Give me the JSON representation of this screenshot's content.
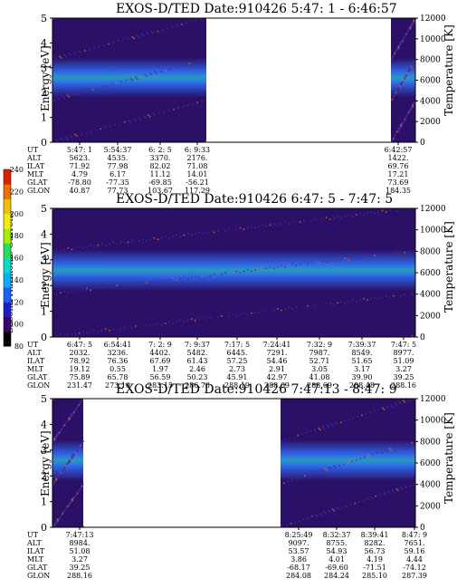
{
  "colors": {
    "background_dark": "#2a1066",
    "band_blue": "#2f6df5",
    "band_cyan": "#28d0e8",
    "colorbar": [
      "#000000",
      "#3a0070",
      "#1a1ad0",
      "#1a60ff",
      "#00b0ff",
      "#00e0d0",
      "#20e060",
      "#a0f000",
      "#f0f000",
      "#f0c000",
      "#f07000",
      "#e02000"
    ]
  },
  "colorbar": {
    "label": "Second Harmonic Current",
    "ticks": [
      "240",
      "220",
      "200",
      "180",
      "160",
      "140",
      "120",
      "100",
      "80"
    ]
  },
  "chart_data": [
    {
      "type": "heatmap",
      "title": "EXOS-D/TED   Date:910426  5:47: 1 - 6:46:57",
      "ylabel": "Energy [eV]",
      "ylabel_right": "Temperature [K]",
      "ylim": [
        0,
        5
      ],
      "yticks": [
        "0",
        "1",
        "2",
        "3",
        "4",
        "5"
      ],
      "ylim_right": [
        0,
        12000
      ],
      "yticks_right": [
        "0",
        "2000",
        "4000",
        "6000",
        "8000",
        "10000",
        "12000"
      ],
      "data_gap": "5:58 - 6:41",
      "row_labels": [
        "UT",
        "ALT",
        "ILAT",
        "MLT",
        "GLAT",
        "GLON"
      ],
      "columns": [
        {
          "UT": "5:47: 1",
          "ALT": "5623.",
          "ILAT": "71.92",
          "MLT": "4.79",
          "GLAT": "-78.80",
          "GLON": "40.87"
        },
        {
          "UT": "5:54:37",
          "ALT": "4535.",
          "ILAT": "77.98",
          "MLT": "6.17",
          "GLAT": "-77.35",
          "GLON": "77.73"
        },
        {
          "UT": "6: 2: 5",
          "ALT": "3370.",
          "ILAT": "82.02",
          "MLT": "11.12",
          "GLAT": "-69.85",
          "GLON": "103.67"
        },
        {
          "UT": "6: 9:33",
          "ALT": "2176.",
          "ILAT": "71.08",
          "MLT": "14.01",
          "GLAT": "-56.21",
          "GLON": "117.29"
        },
        {
          "UT": "6:42:57",
          "ALT": "1422.",
          "ILAT": "69.76",
          "MLT": "17.21",
          "GLAT": "73.69",
          "GLON": "184.35"
        }
      ]
    },
    {
      "type": "heatmap",
      "title": "EXOS-D/TED   Date:910426  6:47: 5 - 7:47: 5",
      "ylabel": "Energy [eV]",
      "ylabel_right": "Temperature [K]",
      "ylim": [
        0,
        5
      ],
      "yticks": [
        "0",
        "1",
        "2",
        "3",
        "4",
        "5"
      ],
      "ylim_right": [
        0,
        12000
      ],
      "yticks_right": [
        "0",
        "2000",
        "4000",
        "6000",
        "8000",
        "10000",
        "12000"
      ],
      "row_labels": [
        "UT",
        "ALT",
        "ILAT",
        "MLT",
        "GLAT",
        "GLON"
      ],
      "columns": [
        {
          "UT": "6:47: 5",
          "ALT": "2032.",
          "ILAT": "78.92",
          "MLT": "19.12",
          "GLAT": "75.89",
          "GLON": "231.47"
        },
        {
          "UT": "6:54:41",
          "ALT": "3236.",
          "ILAT": "76.36",
          "MLT": "0.55",
          "GLAT": "65.78",
          "GLON": "273.10"
        },
        {
          "UT": "7: 2: 9",
          "ALT": "4402.",
          "ILAT": "67.69",
          "MLT": "1.97",
          "GLAT": "56.59",
          "GLON": "283.15"
        },
        {
          "UT": "7: 9:37",
          "ALT": "5482.",
          "ILAT": "61.43",
          "MLT": "2.46",
          "GLAT": "50.23",
          "GLON": "286.76"
        },
        {
          "UT": "7:17: 5",
          "ALT": "6445.",
          "ILAT": "57.25",
          "MLT": "2.73",
          "GLAT": "45.91",
          "GLON": "288.19"
        },
        {
          "UT": "7:24:41",
          "ALT": "7291.",
          "ILAT": "54.46",
          "MLT": "2.91",
          "GLAT": "42.97",
          "GLON": "288.69"
        },
        {
          "UT": "7:32: 9",
          "ALT": "7987.",
          "ILAT": "52.71",
          "MLT": "3.05",
          "GLAT": "41.08",
          "GLON": "288.69"
        },
        {
          "UT": "7:39:37",
          "ALT": "8549.",
          "ILAT": "51.65",
          "MLT": "3.17",
          "GLAT": "39.90",
          "GLON": "288.48"
        },
        {
          "UT": "7:47: 5",
          "ALT": "8977.",
          "ILAT": "51.09",
          "MLT": "3.27",
          "GLAT": "39.25",
          "GLON": "288.16"
        }
      ]
    },
    {
      "type": "heatmap",
      "title": "EXOS-D/TED   Date:910426  7:47:13 - 8:47: 9",
      "ylabel": "Energy [eV]",
      "ylabel_right": "Temperature [K]",
      "ylim": [
        0,
        5
      ],
      "yticks": [
        "0",
        "1",
        "2",
        "3",
        "4",
        "5"
      ],
      "ylim_right": [
        0,
        12000
      ],
      "yticks_right": [
        "0",
        "2000",
        "4000",
        "6000",
        "8000",
        "10000",
        "12000"
      ],
      "data_gap": "7:52 - 8:25",
      "row_labels": [
        "UT",
        "ALT",
        "ILAT",
        "MLT",
        "GLAT",
        "GLON"
      ],
      "columns": [
        {
          "UT": "7:47:13",
          "ALT": "8984.",
          "ILAT": "51.08",
          "MLT": "3.27",
          "GLAT": "39.25",
          "GLON": "288.16"
        },
        {
          "UT": "8:25:49",
          "ALT": "9097.",
          "ILAT": "53.57",
          "MLT": "3.86",
          "GLAT": "-68.17",
          "GLON": "284.08"
        },
        {
          "UT": "8:32:37",
          "ALT": "8755.",
          "ILAT": "54.93",
          "MLT": "4.01",
          "GLAT": "-69.60",
          "GLON": "284.24"
        },
        {
          "UT": "8:39:41",
          "ALT": "8282.",
          "ILAT": "56.73",
          "MLT": "4.19",
          "GLAT": "-71.51",
          "GLON": "285.10"
        },
        {
          "UT": "8:47: 9",
          "ALT": "7651.",
          "ILAT": "59.16",
          "MLT": "4.44",
          "GLAT": "-74.12",
          "GLON": "287.39"
        }
      ]
    }
  ]
}
